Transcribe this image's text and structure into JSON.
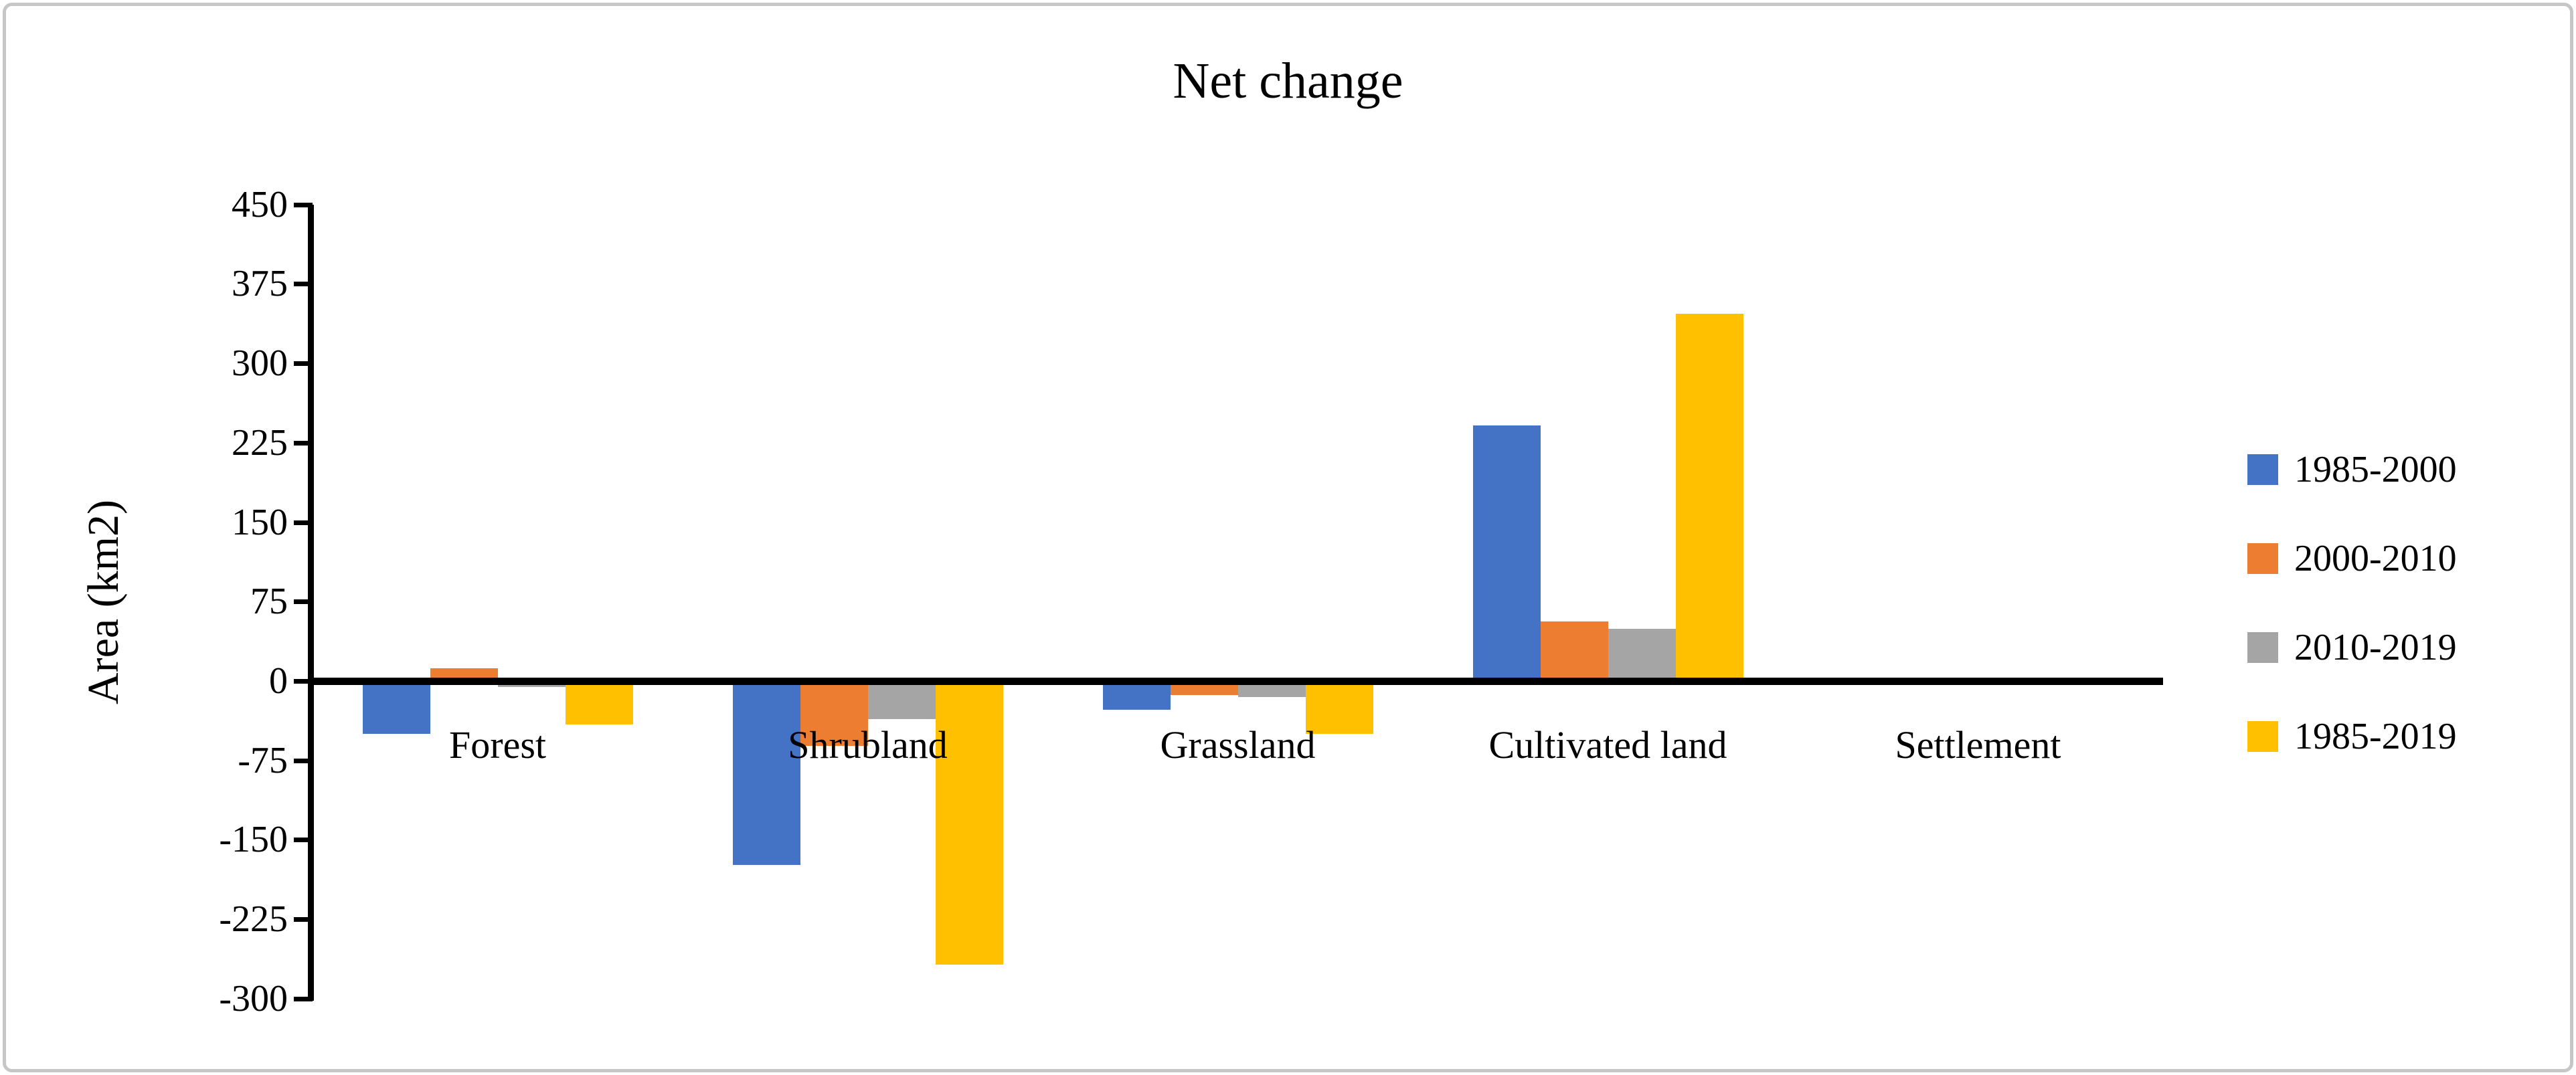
{
  "title": "Net change",
  "y_axis": {
    "label": "Area (km2)"
  },
  "chart_data": {
    "type": "bar",
    "title": "Net change",
    "xlabel": "",
    "ylabel": "Area (km2)",
    "ylim": [
      -300,
      450
    ],
    "ytick_step": 75,
    "yticks": [
      450,
      375,
      300,
      225,
      150,
      75,
      0,
      -75,
      -150,
      -225,
      -300
    ],
    "grid": false,
    "legend_position": "right",
    "categories": [
      "Forest",
      "Shrubland",
      "Grassland",
      "Cultivated land",
      "Settlement"
    ],
    "series": [
      {
        "name": "1985-2000",
        "color": "#4472C4",
        "values": [
          -50,
          -174,
          -27,
          241,
          0
        ]
      },
      {
        "name": "2000-2010",
        "color": "#ED7D31",
        "values": [
          12,
          -61,
          -13,
          56,
          0
        ]
      },
      {
        "name": "2010-2019",
        "color": "#A5A5A5",
        "values": [
          -6,
          -36,
          -15,
          49,
          0
        ]
      },
      {
        "name": "1985-2019",
        "color": "#FFC000",
        "values": [
          -41,
          -268,
          -50,
          347,
          0
        ]
      }
    ]
  }
}
